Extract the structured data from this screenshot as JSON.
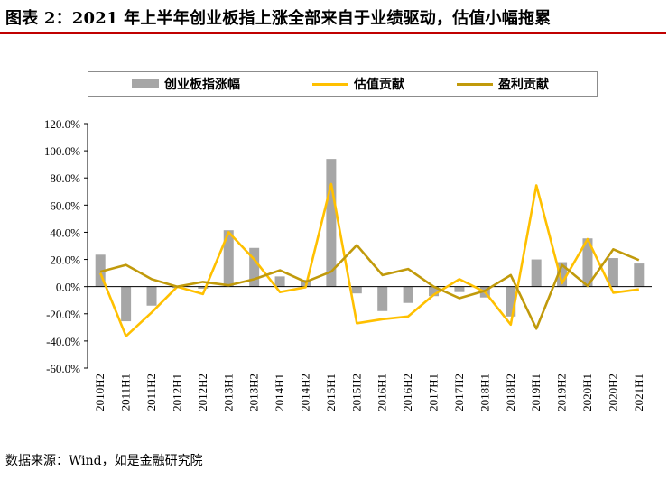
{
  "title": "图表 2：2021 年上半年创业板指上涨全部来自于业绩驱动，估值小幅拖累",
  "source": "数据来源：Wind，如是金融研究院",
  "colors": {
    "title_rule": "#c00000",
    "bar": "#a6a6a6",
    "valuation_line": "#ffc000",
    "earnings_line": "#c19a0b",
    "axis": "#000000"
  },
  "chart_data": {
    "type": "bar",
    "categories": [
      "2010H2",
      "2011H1",
      "2011H2",
      "2012H1",
      "2012H2",
      "2013H1",
      "2013H2",
      "2014H1",
      "2014H2",
      "2015H1",
      "2015H2",
      "2016H1",
      "2016H2",
      "2017H1",
      "2017H2",
      "2018H1",
      "2018H2",
      "2019H1",
      "2019H2",
      "2020H1",
      "2020H2",
      "2021H1"
    ],
    "ylim": [
      -60,
      120
    ],
    "yticks": [
      "120.0%",
      "100.0%",
      "80.0%",
      "60.0%",
      "40.0%",
      "20.0%",
      "0.0%",
      "-20.0%",
      "-40.0%",
      "-60.0%"
    ],
    "ytick_values": [
      120,
      100,
      80,
      60,
      40,
      20,
      0,
      -20,
      -40,
      -60
    ],
    "legend_position": "top",
    "grid": false,
    "series": [
      {
        "name": "创业板指涨幅",
        "type": "bar",
        "values": [
          23.5,
          -25.5,
          -14,
          -1,
          -1.5,
          41.5,
          28.5,
          7.5,
          5,
          94,
          -5,
          -18,
          -12,
          -7,
          -4,
          -8,
          -22,
          20,
          18,
          35.5,
          21,
          17
        ]
      },
      {
        "name": "估值贡献",
        "type": "line",
        "values": [
          10,
          -36.5,
          -19,
          0,
          -5.5,
          40,
          20,
          -4,
          -0.5,
          75.5,
          -27,
          -24,
          -22,
          -6,
          5.5,
          -4,
          -28,
          74.5,
          2.5,
          35,
          -4.5,
          -2
        ]
      },
      {
        "name": "盈利贡献",
        "type": "line",
        "values": [
          11,
          16,
          5.5,
          0,
          3.5,
          1,
          5.5,
          12,
          3.5,
          11,
          30.5,
          8.5,
          13,
          0,
          -8.5,
          -3,
          8.5,
          -31,
          16,
          0.5,
          27.5,
          19.5
        ]
      }
    ]
  }
}
